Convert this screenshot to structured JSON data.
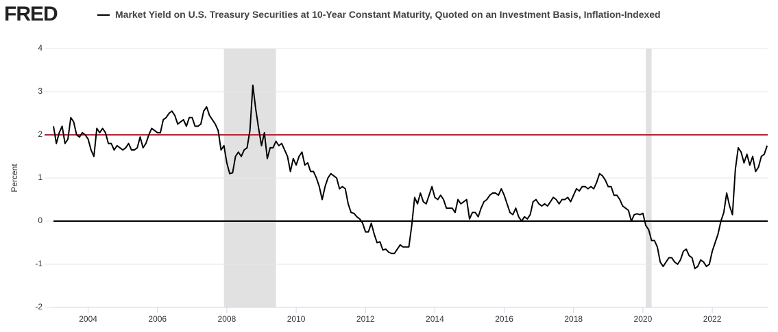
{
  "chart_data": {
    "type": "line",
    "logo": "FRED",
    "y_label": "Percent",
    "x": [
      "2003-01",
      "2003-02",
      "2003-03",
      "2003-04",
      "2003-05",
      "2003-06",
      "2003-07",
      "2003-08",
      "2003-09",
      "2003-10",
      "2003-11",
      "2003-12",
      "2004-01",
      "2004-02",
      "2004-03",
      "2004-04",
      "2004-05",
      "2004-06",
      "2004-07",
      "2004-08",
      "2004-09",
      "2004-10",
      "2004-11",
      "2004-12",
      "2005-01",
      "2005-02",
      "2005-03",
      "2005-04",
      "2005-05",
      "2005-06",
      "2005-07",
      "2005-08",
      "2005-09",
      "2005-10",
      "2005-11",
      "2005-12",
      "2006-01",
      "2006-02",
      "2006-03",
      "2006-04",
      "2006-05",
      "2006-06",
      "2006-07",
      "2006-08",
      "2006-09",
      "2006-10",
      "2006-11",
      "2006-12",
      "2007-01",
      "2007-02",
      "2007-03",
      "2007-04",
      "2007-05",
      "2007-06",
      "2007-07",
      "2007-08",
      "2007-09",
      "2007-10",
      "2007-11",
      "2007-12",
      "2008-01",
      "2008-02",
      "2008-03",
      "2008-04",
      "2008-05",
      "2008-06",
      "2008-07",
      "2008-08",
      "2008-09",
      "2008-10",
      "2008-11",
      "2008-12",
      "2009-01",
      "2009-02",
      "2009-03",
      "2009-04",
      "2009-05",
      "2009-06",
      "2009-07",
      "2009-08",
      "2009-09",
      "2009-10",
      "2009-11",
      "2009-12",
      "2010-01",
      "2010-02",
      "2010-03",
      "2010-04",
      "2010-05",
      "2010-06",
      "2010-07",
      "2010-08",
      "2010-09",
      "2010-10",
      "2010-11",
      "2010-12",
      "2011-01",
      "2011-02",
      "2011-03",
      "2011-04",
      "2011-05",
      "2011-06",
      "2011-07",
      "2011-08",
      "2011-09",
      "2011-10",
      "2011-11",
      "2011-12",
      "2012-01",
      "2012-02",
      "2012-03",
      "2012-04",
      "2012-05",
      "2012-06",
      "2012-07",
      "2012-08",
      "2012-09",
      "2012-10",
      "2012-11",
      "2012-12",
      "2013-01",
      "2013-02",
      "2013-03",
      "2013-04",
      "2013-05",
      "2013-06",
      "2013-07",
      "2013-08",
      "2013-09",
      "2013-10",
      "2013-11",
      "2013-12",
      "2014-01",
      "2014-02",
      "2014-03",
      "2014-04",
      "2014-05",
      "2014-06",
      "2014-07",
      "2014-08",
      "2014-09",
      "2014-10",
      "2014-11",
      "2014-12",
      "2015-01",
      "2015-02",
      "2015-03",
      "2015-04",
      "2015-05",
      "2015-06",
      "2015-07",
      "2015-08",
      "2015-09",
      "2015-10",
      "2015-11",
      "2015-12",
      "2016-01",
      "2016-02",
      "2016-03",
      "2016-04",
      "2016-05",
      "2016-06",
      "2016-07",
      "2016-08",
      "2016-09",
      "2016-10",
      "2016-11",
      "2016-12",
      "2017-01",
      "2017-02",
      "2017-03",
      "2017-04",
      "2017-05",
      "2017-06",
      "2017-07",
      "2017-08",
      "2017-09",
      "2017-10",
      "2017-11",
      "2017-12",
      "2018-01",
      "2018-02",
      "2018-03",
      "2018-04",
      "2018-05",
      "2018-06",
      "2018-07",
      "2018-08",
      "2018-09",
      "2018-10",
      "2018-11",
      "2018-12",
      "2019-01",
      "2019-02",
      "2019-03",
      "2019-04",
      "2019-05",
      "2019-06",
      "2019-07",
      "2019-08",
      "2019-09",
      "2019-10",
      "2019-11",
      "2019-12",
      "2020-01",
      "2020-02",
      "2020-03",
      "2020-04",
      "2020-05",
      "2020-06",
      "2020-07",
      "2020-08",
      "2020-09",
      "2020-10",
      "2020-11",
      "2020-12",
      "2021-01",
      "2021-02",
      "2021-03",
      "2021-04",
      "2021-05",
      "2021-06",
      "2021-07",
      "2021-08",
      "2021-09",
      "2021-10",
      "2021-11",
      "2021-12",
      "2022-01",
      "2022-02",
      "2022-03",
      "2022-04",
      "2022-05",
      "2022-06",
      "2022-07",
      "2022-08",
      "2022-09",
      "2022-10",
      "2022-11",
      "2022-12",
      "2023-01",
      "2023-02",
      "2023-03",
      "2023-04",
      "2023-05",
      "2023-06",
      "2023-07",
      "2023-08"
    ],
    "series": [
      {
        "name": "Market Yield on U.S. Treasury Securities at 10-Year Constant Maturity, Quoted on an Investment Basis, Inflation-Indexed",
        "color": "#000000",
        "values": [
          2.2,
          1.8,
          2.05,
          2.2,
          1.8,
          1.9,
          2.4,
          2.3,
          2.0,
          1.95,
          2.05,
          2.0,
          1.9,
          1.65,
          1.5,
          2.15,
          2.05,
          2.15,
          2.05,
          1.8,
          1.8,
          1.65,
          1.75,
          1.7,
          1.65,
          1.7,
          1.8,
          1.65,
          1.65,
          1.7,
          1.95,
          1.7,
          1.8,
          2.0,
          2.15,
          2.1,
          2.05,
          2.05,
          2.35,
          2.4,
          2.5,
          2.55,
          2.45,
          2.25,
          2.3,
          2.35,
          2.2,
          2.4,
          2.4,
          2.2,
          2.2,
          2.25,
          2.55,
          2.65,
          2.45,
          2.35,
          2.25,
          2.1,
          1.65,
          1.75,
          1.35,
          1.1,
          1.12,
          1.5,
          1.6,
          1.5,
          1.65,
          1.7,
          2.1,
          3.15,
          2.6,
          2.15,
          1.75,
          2.05,
          1.45,
          1.7,
          1.7,
          1.85,
          1.75,
          1.8,
          1.65,
          1.5,
          1.15,
          1.45,
          1.3,
          1.5,
          1.6,
          1.3,
          1.35,
          1.15,
          1.15,
          1.0,
          0.8,
          0.5,
          0.8,
          1.0,
          1.1,
          1.05,
          1.0,
          0.75,
          0.8,
          0.75,
          0.4,
          0.2,
          0.18,
          0.1,
          0.05,
          -0.05,
          -0.25,
          -0.25,
          -0.05,
          -0.3,
          -0.5,
          -0.48,
          -0.67,
          -0.65,
          -0.72,
          -0.75,
          -0.75,
          -0.65,
          -0.55,
          -0.6,
          -0.6,
          -0.6,
          -0.1,
          0.55,
          0.4,
          0.65,
          0.45,
          0.4,
          0.6,
          0.8,
          0.55,
          0.5,
          0.6,
          0.5,
          0.3,
          0.3,
          0.3,
          0.2,
          0.5,
          0.4,
          0.45,
          0.5,
          0.05,
          0.2,
          0.2,
          0.1,
          0.3,
          0.45,
          0.5,
          0.6,
          0.65,
          0.65,
          0.6,
          0.75,
          0.6,
          0.4,
          0.2,
          0.15,
          0.3,
          0.1,
          0.0,
          0.1,
          0.05,
          0.15,
          0.45,
          0.5,
          0.4,
          0.35,
          0.4,
          0.35,
          0.45,
          0.55,
          0.5,
          0.4,
          0.5,
          0.5,
          0.55,
          0.45,
          0.6,
          0.75,
          0.7,
          0.8,
          0.8,
          0.75,
          0.8,
          0.75,
          0.9,
          1.1,
          1.05,
          0.95,
          0.8,
          0.8,
          0.6,
          0.6,
          0.5,
          0.35,
          0.3,
          0.25,
          0.0,
          0.15,
          0.17,
          0.15,
          0.18,
          -0.1,
          -0.2,
          -0.45,
          -0.45,
          -0.6,
          -0.95,
          -1.05,
          -0.95,
          -0.85,
          -0.85,
          -0.95,
          -1.0,
          -0.9,
          -0.7,
          -0.65,
          -0.8,
          -0.85,
          -1.1,
          -1.05,
          -0.9,
          -0.95,
          -1.05,
          -1.0,
          -0.7,
          -0.5,
          -0.3,
          0.0,
          0.2,
          0.65,
          0.35,
          0.15,
          1.2,
          1.7,
          1.6,
          1.35,
          1.55,
          1.3,
          1.5,
          1.15,
          1.25,
          1.5,
          1.55,
          1.75
        ]
      }
    ],
    "xlim": [
      2003,
      2023.6
    ],
    "xticks": [
      2004,
      2006,
      2008,
      2010,
      2012,
      2014,
      2016,
      2018,
      2020,
      2022
    ],
    "ylim": [
      -2,
      4
    ],
    "yticks": [
      -2,
      -1,
      0,
      1,
      2,
      3,
      4
    ],
    "grid": true,
    "reference_lines": [
      {
        "value": 2,
        "color": "#b22234"
      },
      {
        "value": 0,
        "color": "#000000"
      }
    ],
    "shaded_regions": [
      {
        "start": "2007-12",
        "end": "2009-06",
        "color": "#e1e1e1"
      },
      {
        "start": "2020-02",
        "end": "2020-04",
        "color": "#e1e1e1"
      }
    ]
  }
}
